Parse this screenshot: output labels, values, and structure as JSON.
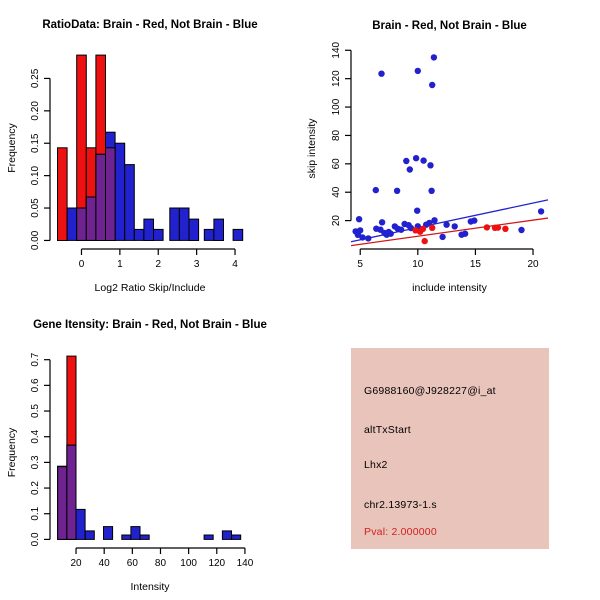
{
  "figure": {
    "background": "#ffffff",
    "description": "R graphics 2x2 exon/gene expression diagnostics figure"
  },
  "colors": {
    "red": "#EE1111",
    "blue": "#2121CE",
    "purple": "#6E2391",
    "red_line": "#D01818",
    "blue_line": "#2222CE",
    "axis": "#000000",
    "panel_pink": "#E9C4BB",
    "pval_red": "#D42020",
    "text": "#000000"
  },
  "chart_data": [
    {
      "type": "bar",
      "subtype": "overlaid-histogram",
      "name": "ratio-histogram",
      "title": "RatioData: Brain - Red, Not Brain - Blue",
      "xlabel": "Log2 Ratio Skip/Include",
      "ylabel": "Frequency",
      "legend": {
        "Brain": "red",
        "Not Brain": "blue"
      },
      "plot": [
        50,
        47,
        250,
        249
      ],
      "xlim": [
        -0.82,
        4.39
      ],
      "ylim": [
        -0.0132,
        0.2985
      ],
      "title_y": 28,
      "xticks": [
        0,
        1,
        2,
        3,
        4
      ],
      "xtick_labels": [
        "0",
        "1",
        "2",
        "3",
        "4"
      ],
      "yticks": [
        0,
        0.05,
        0.1,
        0.15,
        0.2,
        0.25
      ],
      "ytick_labels": [
        "0.00",
        "0.05",
        "0.10",
        "0.15",
        "0.20",
        "0.25"
      ],
      "red_bars": [
        [
          -0.625,
          -0.375,
          0.143
        ],
        [
          -0.125,
          0.125,
          0.286
        ],
        [
          0.125,
          0.375,
          0.143
        ],
        [
          0.375,
          0.625,
          0.286
        ],
        [
          0.625,
          0.875,
          0.143
        ]
      ],
      "blue_bars": [
        [
          -0.375,
          -0.125,
          0.05
        ],
        [
          -0.125,
          0.125,
          0.05
        ],
        [
          0.125,
          0.375,
          0.067
        ],
        [
          0.375,
          0.625,
          0.133
        ],
        [
          0.625,
          0.875,
          0.167
        ],
        [
          0.875,
          1.125,
          0.15
        ],
        [
          1.125,
          1.375,
          0.117
        ],
        [
          1.375,
          1.625,
          0.017
        ],
        [
          1.625,
          1.875,
          0.033
        ],
        [
          1.875,
          2.125,
          0.017
        ],
        [
          2.3,
          2.55,
          0.05
        ],
        [
          2.55,
          2.8,
          0.05
        ],
        [
          2.8,
          3.05,
          0.033
        ],
        [
          3.2,
          3.45,
          0.017
        ],
        [
          3.45,
          3.7,
          0.033
        ],
        [
          3.95,
          4.2,
          0.017
        ]
      ],
      "purple_bars": [
        [
          -0.125,
          0.125,
          0.05
        ],
        [
          0.125,
          0.375,
          0.067
        ],
        [
          0.375,
          0.625,
          0.133
        ],
        [
          0.625,
          0.875,
          0.143
        ]
      ]
    },
    {
      "type": "scatter",
      "name": "intensity-scatter",
      "title": "Brain - Red, Not Brain - Blue",
      "xlabel": "include intensity",
      "ylabel": "skip intensity",
      "plot": [
        51,
        48,
        248,
        249
      ],
      "xlim": [
        4.2,
        21.3
      ],
      "ylim": [
        0,
        141.6
      ],
      "title_y": 29,
      "xticks": [
        5,
        10,
        15,
        20
      ],
      "xtick_labels": [
        "5",
        "10",
        "15",
        "20"
      ],
      "yticks": [
        20,
        40,
        60,
        80,
        100,
        120,
        140
      ],
      "ytick_labels": [
        "20",
        "40",
        "60",
        "80",
        "100",
        "120",
        "140"
      ],
      "point_radius": 3.2,
      "blue_points": [
        [
          11.4,
          135
        ],
        [
          10,
          125.5
        ],
        [
          6.85,
          123.5
        ],
        [
          11.25,
          115.5
        ],
        [
          9.85,
          64
        ],
        [
          10.5,
          62.3
        ],
        [
          9,
          62
        ],
        [
          11.1,
          59
        ],
        [
          9.3,
          56
        ],
        [
          6.35,
          41.5
        ],
        [
          8.2,
          41
        ],
        [
          11.2,
          41
        ],
        [
          9.95,
          27
        ],
        [
          20.7,
          26.5
        ],
        [
          4.9,
          21
        ],
        [
          11.45,
          20.2
        ],
        [
          14.9,
          20
        ],
        [
          14.6,
          19.4
        ],
        [
          6.9,
          18.8
        ],
        [
          11,
          18.3
        ],
        [
          8.85,
          17.6
        ],
        [
          10.73,
          17.1
        ],
        [
          12.5,
          17.1
        ],
        [
          9.2,
          16.8
        ],
        [
          10,
          16
        ],
        [
          13.2,
          15.9
        ],
        [
          8,
          15.9
        ],
        [
          9.4,
          14.8
        ],
        [
          6.4,
          14.3
        ],
        [
          8.25,
          14.3
        ],
        [
          8.55,
          13.6
        ],
        [
          6.75,
          13.6
        ],
        [
          19,
          13.4
        ],
        [
          5,
          13.1
        ],
        [
          4.6,
          12.4
        ],
        [
          7.47,
          12
        ],
        [
          7.1,
          11.3
        ],
        [
          14.1,
          10.8
        ],
        [
          7.65,
          10.8
        ],
        [
          13.8,
          10.1
        ],
        [
          7.3,
          10.1
        ],
        [
          4.8,
          10
        ],
        [
          12.15,
          8.5
        ],
        [
          5.2,
          8.2
        ],
        [
          5.7,
          7.5
        ]
      ],
      "red_points": [
        [
          9.8,
          13.2
        ],
        [
          10.2,
          12.2
        ],
        [
          10.45,
          14.2
        ],
        [
          10.6,
          5.6
        ],
        [
          11.25,
          14.9
        ],
        [
          16,
          15.2
        ],
        [
          16.7,
          14.9
        ],
        [
          16.95,
          15.1
        ],
        [
          17.6,
          14.2
        ]
      ],
      "blue_line": [
        4.2,
        5.1,
        21.3,
        34.6
      ],
      "red_line": [
        4.2,
        2.4,
        21.3,
        21.8
      ]
    },
    {
      "type": "bar",
      "subtype": "overlaid-histogram",
      "name": "gene-intensity-histogram",
      "title": "Gene Itensity: Brain - Red, Not Brain - Blue",
      "xlabel": "Intensity",
      "ylabel": "Frequency",
      "plot": [
        50,
        57,
        250,
        248
      ],
      "xlim": [
        1.5,
        143.6
      ],
      "ylim": [
        -0.0335,
        0.7105
      ],
      "title_y": 28,
      "xticks": [
        20,
        40,
        60,
        80,
        100,
        120,
        140
      ],
      "xtick_labels": [
        "20",
        "40",
        "60",
        "80",
        "100",
        "120",
        "140"
      ],
      "yticks": [
        0,
        0.1,
        0.2,
        0.3,
        0.4,
        0.5,
        0.6,
        0.7
      ],
      "ytick_labels": [
        "0.0",
        "0.1",
        "0.2",
        "0.3",
        "0.4",
        "0.5",
        "0.6",
        "0.7"
      ],
      "red_bars": [
        [
          7,
          13.5,
          0.285
        ],
        [
          13.5,
          20,
          0.714
        ]
      ],
      "blue_bars": [
        [
          7,
          13.5,
          0.283
        ],
        [
          13.5,
          20,
          0.367
        ],
        [
          20,
          26.5,
          0.117
        ],
        [
          26.5,
          33,
          0.033
        ],
        [
          39.5,
          46,
          0.05
        ],
        [
          52.5,
          59,
          0.017
        ],
        [
          59,
          65.5,
          0.05
        ],
        [
          65.5,
          72,
          0.017
        ],
        [
          111,
          117.5,
          0.017
        ],
        [
          124,
          130.5,
          0.033
        ],
        [
          130.5,
          137,
          0.017
        ]
      ],
      "purple_bars": [
        [
          7,
          13.5,
          0.283
        ],
        [
          13.5,
          20,
          0.367
        ]
      ]
    },
    {
      "type": "info",
      "name": "info-panel",
      "bg": "#E9C4BB",
      "lines": [
        {
          "text": "G6988160@J928227@i_at",
          "color": "#000000"
        },
        {
          "text": "altTxStart",
          "color": "#000000"
        },
        {
          "text": "Lhx2",
          "color": "#000000"
        },
        {
          "text": "chr2.13973-1.s",
          "color": "#000000"
        },
        {
          "text": "Pval: 2.000000",
          "color": "#D42020"
        }
      ]
    }
  ]
}
